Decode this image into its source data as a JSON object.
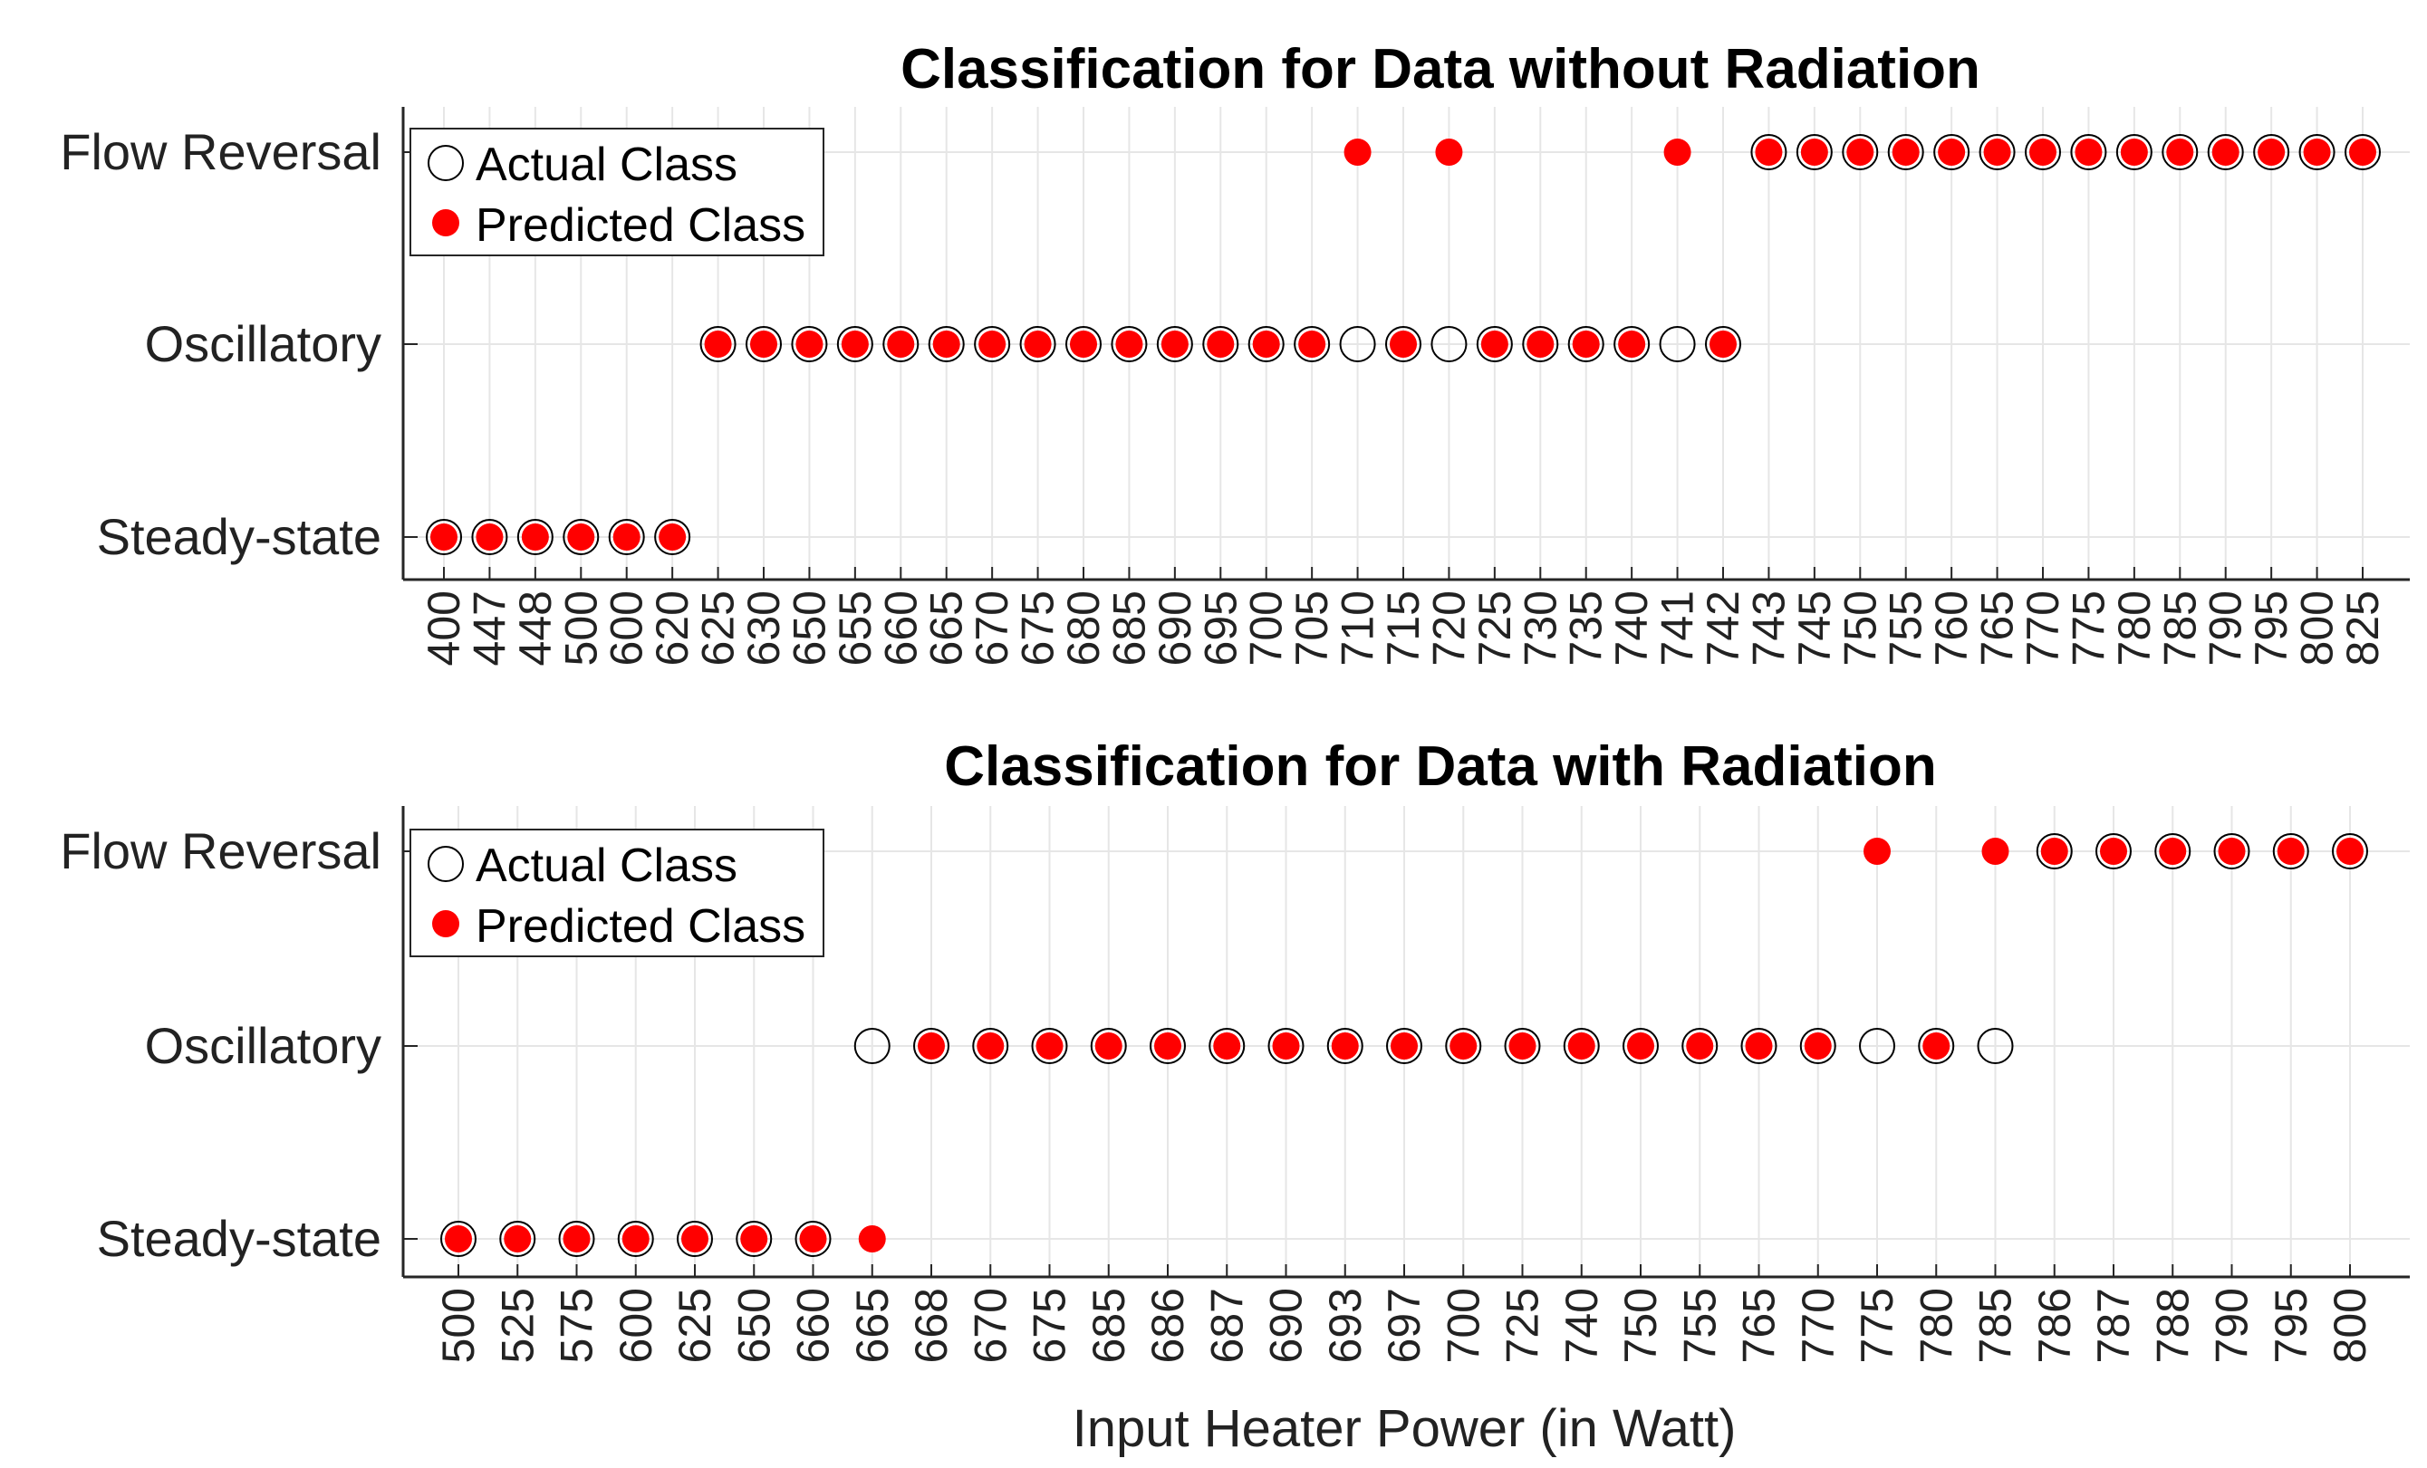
{
  "chart_data": [
    {
      "type": "scatter",
      "title": "Classification for Data without Radiation",
      "xlabel": "",
      "ylabel": "",
      "y_categories": [
        "Steady-state",
        "Oscillatory",
        "Flow Reversal"
      ],
      "categories": [
        "400",
        "447",
        "448",
        "500",
        "600",
        "620",
        "625",
        "630",
        "650",
        "655",
        "660",
        "665",
        "670",
        "675",
        "680",
        "685",
        "690",
        "695",
        "700",
        "705",
        "710",
        "715",
        "720",
        "725",
        "730",
        "735",
        "740",
        "741",
        "742",
        "743",
        "745",
        "750",
        "755",
        "760",
        "765",
        "770",
        "775",
        "780",
        "785",
        "790",
        "795",
        "800",
        "825"
      ],
      "series": [
        {
          "name": "Actual Class",
          "marker": "open-circle",
          "values": [
            "Steady-state",
            "Steady-state",
            "Steady-state",
            "Steady-state",
            "Steady-state",
            "Steady-state",
            "Oscillatory",
            "Oscillatory",
            "Oscillatory",
            "Oscillatory",
            "Oscillatory",
            "Oscillatory",
            "Oscillatory",
            "Oscillatory",
            "Oscillatory",
            "Oscillatory",
            "Oscillatory",
            "Oscillatory",
            "Oscillatory",
            "Oscillatory",
            "Oscillatory",
            "Oscillatory",
            "Oscillatory",
            "Oscillatory",
            "Oscillatory",
            "Oscillatory",
            "Oscillatory",
            "Oscillatory",
            "Oscillatory",
            "Flow Reversal",
            "Flow Reversal",
            "Flow Reversal",
            "Flow Reversal",
            "Flow Reversal",
            "Flow Reversal",
            "Flow Reversal",
            "Flow Reversal",
            "Flow Reversal",
            "Flow Reversal",
            "Flow Reversal",
            "Flow Reversal",
            "Flow Reversal",
            "Flow Reversal"
          ]
        },
        {
          "name": "Predicted Class",
          "marker": "filled-circle",
          "values": [
            "Steady-state",
            "Steady-state",
            "Steady-state",
            "Steady-state",
            "Steady-state",
            "Steady-state",
            "Oscillatory",
            "Oscillatory",
            "Oscillatory",
            "Oscillatory",
            "Oscillatory",
            "Oscillatory",
            "Oscillatory",
            "Oscillatory",
            "Oscillatory",
            "Oscillatory",
            "Oscillatory",
            "Oscillatory",
            "Oscillatory",
            "Oscillatory",
            "Flow Reversal",
            "Oscillatory",
            "Flow Reversal",
            "Oscillatory",
            "Oscillatory",
            "Oscillatory",
            "Oscillatory",
            "Flow Reversal",
            "Oscillatory",
            "Flow Reversal",
            "Flow Reversal",
            "Flow Reversal",
            "Flow Reversal",
            "Flow Reversal",
            "Flow Reversal",
            "Flow Reversal",
            "Flow Reversal",
            "Flow Reversal",
            "Flow Reversal",
            "Flow Reversal",
            "Flow Reversal",
            "Flow Reversal",
            "Flow Reversal"
          ]
        }
      ],
      "legend": {
        "position": "top-left",
        "entries": [
          "Actual Class",
          "Predicted Class"
        ]
      },
      "grid": true
    },
    {
      "type": "scatter",
      "title": "Classification for Data with Radiation",
      "xlabel": "Input Heater Power (in Watt)",
      "ylabel": "",
      "y_categories": [
        "Steady-state",
        "Oscillatory",
        "Flow Reversal"
      ],
      "categories": [
        "500",
        "525",
        "575",
        "600",
        "625",
        "650",
        "660",
        "665",
        "668",
        "670",
        "675",
        "685",
        "686",
        "687",
        "690",
        "693",
        "697",
        "700",
        "725",
        "740",
        "750",
        "755",
        "765",
        "770",
        "775",
        "780",
        "785",
        "786",
        "787",
        "788",
        "790",
        "795",
        "800"
      ],
      "series": [
        {
          "name": "Actual Class",
          "marker": "open-circle",
          "values": [
            "Steady-state",
            "Steady-state",
            "Steady-state",
            "Steady-state",
            "Steady-state",
            "Steady-state",
            "Steady-state",
            "Oscillatory",
            "Oscillatory",
            "Oscillatory",
            "Oscillatory",
            "Oscillatory",
            "Oscillatory",
            "Oscillatory",
            "Oscillatory",
            "Oscillatory",
            "Oscillatory",
            "Oscillatory",
            "Oscillatory",
            "Oscillatory",
            "Oscillatory",
            "Oscillatory",
            "Oscillatory",
            "Oscillatory",
            "Oscillatory",
            "Oscillatory",
            "Oscillatory",
            "Flow Reversal",
            "Flow Reversal",
            "Flow Reversal",
            "Flow Reversal",
            "Flow Reversal",
            "Flow Reversal"
          ]
        },
        {
          "name": "Predicted Class",
          "marker": "filled-circle",
          "values": [
            "Steady-state",
            "Steady-state",
            "Steady-state",
            "Steady-state",
            "Steady-state",
            "Steady-state",
            "Steady-state",
            "Steady-state",
            "Oscillatory",
            "Oscillatory",
            "Oscillatory",
            "Oscillatory",
            "Oscillatory",
            "Oscillatory",
            "Oscillatory",
            "Oscillatory",
            "Oscillatory",
            "Oscillatory",
            "Oscillatory",
            "Oscillatory",
            "Oscillatory",
            "Oscillatory",
            "Oscillatory",
            "Oscillatory",
            "Flow Reversal",
            "Oscillatory",
            "Flow Reversal",
            "Flow Reversal",
            "Flow Reversal",
            "Flow Reversal",
            "Flow Reversal",
            "Flow Reversal",
            "Flow Reversal"
          ]
        }
      ],
      "legend": {
        "position": "top-left",
        "entries": [
          "Actual Class",
          "Predicted Class"
        ]
      },
      "grid": true
    }
  ],
  "colors": {
    "predicted": "#ff0000",
    "actual_edge": "#000000",
    "grid": "#e6e6e6",
    "axis": "#262626"
  }
}
